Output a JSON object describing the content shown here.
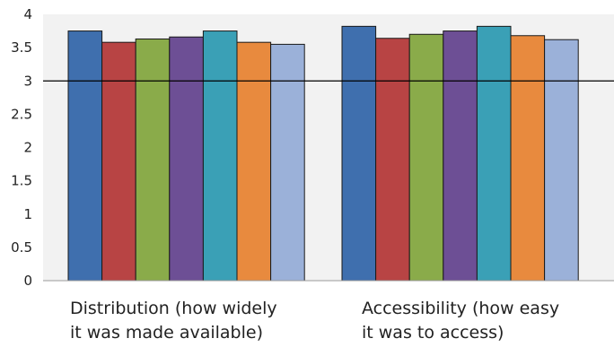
{
  "chart_data": {
    "type": "bar",
    "categories": [
      [
        "Distribution (how widely",
        "it was made available)"
      ],
      [
        "Accessibility (how easy",
        "it was to access)"
      ]
    ],
    "series": [
      {
        "color": "#3f6fae",
        "values": [
          3.75,
          3.82
        ]
      },
      {
        "color": "#b84444",
        "values": [
          3.58,
          3.64
        ]
      },
      {
        "color": "#8aab4a",
        "values": [
          3.63,
          3.7
        ]
      },
      {
        "color": "#6d4f95",
        "values": [
          3.66,
          3.75
        ]
      },
      {
        "color": "#3aa0b6",
        "values": [
          3.75,
          3.82
        ]
      },
      {
        "color": "#e88a3e",
        "values": [
          3.58,
          3.68
        ]
      },
      {
        "color": "#9bb1d9",
        "values": [
          3.55,
          3.62
        ]
      }
    ],
    "ylim": [
      0,
      4
    ],
    "yticks": [
      "0",
      "0.5",
      "1",
      "1.5",
      "2",
      "2.5",
      "3",
      "3.5",
      "4"
    ],
    "reference_line": 3,
    "background": "#f2f2f2",
    "grid": false,
    "title": "",
    "xlabel": "",
    "ylabel": ""
  }
}
